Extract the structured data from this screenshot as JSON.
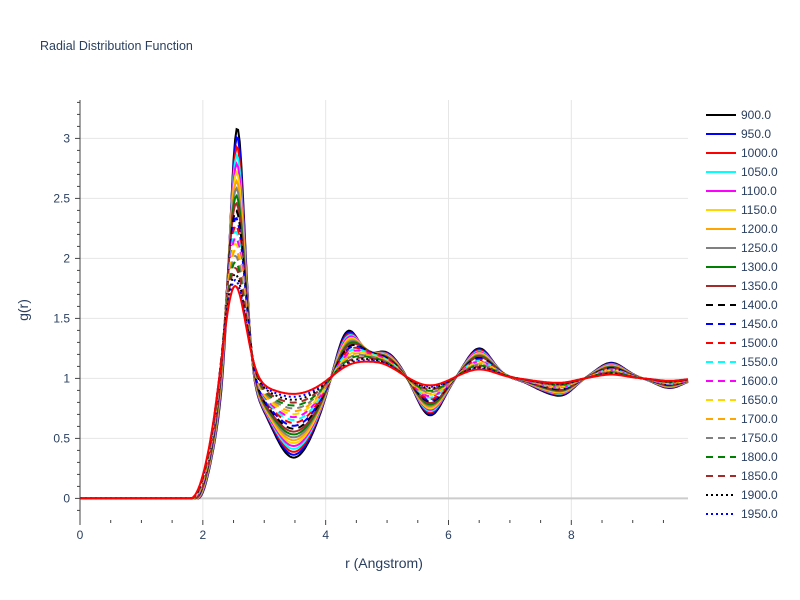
{
  "chart_data": {
    "type": "line",
    "title": "Radial Distribution Function",
    "xlabel": "r (Angstrom)",
    "ylabel": "g(r)",
    "xlim": [
      0,
      9.9
    ],
    "ylim": [
      -0.18,
      3.32
    ],
    "xticks": [
      0,
      2,
      4,
      6,
      8
    ],
    "xtick_labels": [
      "0",
      "2",
      "4",
      "6",
      "8"
    ],
    "yticks": [
      0,
      0.5,
      1,
      1.5,
      2,
      2.5,
      3
    ],
    "ytick_labels": [
      "0",
      "0.5",
      "1",
      "1.5",
      "2",
      "2.5",
      "3"
    ],
    "grid": true,
    "legend_position": "right",
    "series": [
      {
        "name": "900.0",
        "color": "#000000",
        "dash": "solid",
        "peak1": 3.15
      },
      {
        "name": "950.0",
        "color": "#0000ff",
        "dash": "solid",
        "peak1": 3.08
      },
      {
        "name": "1000.0",
        "color": "#ff0000",
        "dash": "solid",
        "peak1": 3.0
      },
      {
        "name": "1050.0",
        "color": "#00ffff",
        "dash": "solid",
        "peak1": 2.93
      },
      {
        "name": "1100.0",
        "color": "#ff00ff",
        "dash": "solid",
        "peak1": 2.86
      },
      {
        "name": "1150.0",
        "color": "#ffd700",
        "dash": "solid",
        "peak1": 2.79
      },
      {
        "name": "1200.0",
        "color": "#ffa500",
        "dash": "solid",
        "peak1": 2.72
      },
      {
        "name": "1250.0",
        "color": "#808080",
        "dash": "solid",
        "peak1": 2.66
      },
      {
        "name": "1300.0",
        "color": "#008000",
        "dash": "solid",
        "peak1": 2.6
      },
      {
        "name": "1350.0",
        "color": "#a52a2a",
        "dash": "solid",
        "peak1": 2.54
      },
      {
        "name": "1400.0",
        "color": "#000000",
        "dash": "dash",
        "peak1": 2.48
      },
      {
        "name": "1450.0",
        "color": "#0000ff",
        "dash": "dash",
        "peak1": 2.42
      },
      {
        "name": "1500.0",
        "color": "#ff0000",
        "dash": "dash",
        "peak1": 2.36
      },
      {
        "name": "1550.0",
        "color": "#00ffff",
        "dash": "dash",
        "peak1": 2.31
      },
      {
        "name": "1600.0",
        "color": "#ff00ff",
        "dash": "dash",
        "peak1": 2.26
      },
      {
        "name": "1650.0",
        "color": "#ffd700",
        "dash": "dash",
        "peak1": 2.21
      },
      {
        "name": "1700.0",
        "color": "#ffa500",
        "dash": "dash",
        "peak1": 2.16
      },
      {
        "name": "1750.0",
        "color": "#808080",
        "dash": "dash",
        "peak1": 2.11
      },
      {
        "name": "1800.0",
        "color": "#008000",
        "dash": "dash",
        "peak1": 2.06
      },
      {
        "name": "1850.0",
        "color": "#a52a2a",
        "dash": "dash",
        "peak1": 2.01
      },
      {
        "name": "1900.0",
        "color": "#000000",
        "dash": "dot",
        "peak1": 1.96
      },
      {
        "name": "1950.0",
        "color": "#0000ff",
        "dash": "dot",
        "peak1": 1.91
      },
      {
        "name": "",
        "color": "#ff0000",
        "dash": "solid",
        "peak1": 1.86
      }
    ]
  }
}
